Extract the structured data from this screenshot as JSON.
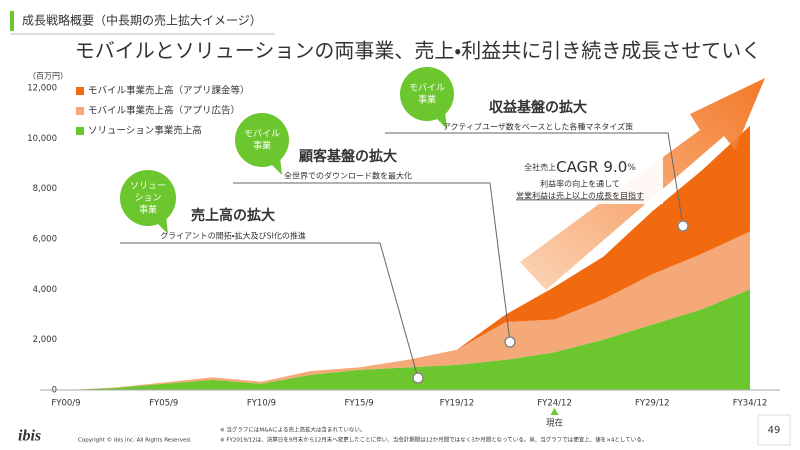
{
  "header": {
    "section": "成長戦略概要（中長期の売上拡大イメージ）",
    "title": "モバイルとソリューションの両事業、売上・利益共に引き続き成長させていく"
  },
  "chart_data": {
    "type": "stacked_area",
    "y_unit": "（百万円）",
    "categories": [
      "FY00/9",
      null,
      "FY05/9",
      null,
      "FY10/9",
      null,
      "FY15/9",
      null,
      "FY19/12",
      null,
      "FY24/12",
      null,
      "FY29/12",
      null,
      "FY34/12"
    ],
    "series": [
      {
        "name": "ソリューション事業売上高",
        "color": "#6cc62e",
        "values": [
          0,
          80,
          250,
          400,
          250,
          600,
          800,
          900,
          1000,
          1200,
          1500,
          2000,
          2600,
          3200,
          4000
        ]
      },
      {
        "name": "モバイル事業売上高（アプリ広告）",
        "color": "#f5a878",
        "values": [
          0,
          20,
          50,
          100,
          80,
          150,
          100,
          300,
          600,
          1500,
          1300,
          1600,
          2000,
          2200,
          2300
        ]
      },
      {
        "name": "モバイル事業売上高（アプリ課金等）",
        "color": "#f26a10",
        "values": [
          0,
          0,
          0,
          0,
          0,
          0,
          0,
          0,
          0,
          300,
          1300,
          1700,
          2500,
          3300,
          4200
        ]
      }
    ],
    "ylim": [
      0,
      12000
    ],
    "yticks": [
      0,
      {
        "value": 2000,
        "label": "2,000"
      },
      {
        "value": 4000,
        "label": "4,000"
      },
      {
        "value": 6000,
        "label": "6,000"
      },
      {
        "value": 8000,
        "label": "8,000"
      },
      {
        "value": 10000,
        "label": "10,000"
      },
      {
        "value": 12000,
        "label": "12,000"
      }
    ],
    "grid": false,
    "legend_position": "top-left",
    "annotations": [
      {
        "bubble": [
          "ソリュー",
          "ション",
          "事業"
        ],
        "heading": "売上高の拡大",
        "text": "クライアントの開拓・拡大及びSI化の推進"
      },
      {
        "bubble": [
          "モバイル",
          "事業"
        ],
        "heading": "顧客基盤の拡大",
        "text": "全世界でのダウンロード数を最大化"
      },
      {
        "bubble": [
          "モバイル",
          "事業"
        ],
        "heading": "収益基盤の拡大",
        "text": "アクティブユーザ数をベースとした各種マネタイズ策"
      }
    ],
    "cagr": {
      "prefix": "全社売上",
      "main": "CAGR 9.0",
      "unit": "%",
      "lines": [
        "利益率の向上を通して",
        "営業利益は売上以上の成長を目指す"
      ]
    },
    "current_marker": "現在"
  },
  "footer": {
    "logo": "ibis",
    "copyright": "Copyright © ibis inc. All Rights Reserved.",
    "notes": [
      "※ 当グラフにはM&Aによる売上高拡大は含まれていない。",
      "※ FY2019/12は、決算日を9月末から12月末へ変更したことに伴い、当会計期間は12か月間ではなく3か月間となっている。尚、当グラフでは便宜上、値を×4としている。"
    ],
    "page": "49"
  }
}
